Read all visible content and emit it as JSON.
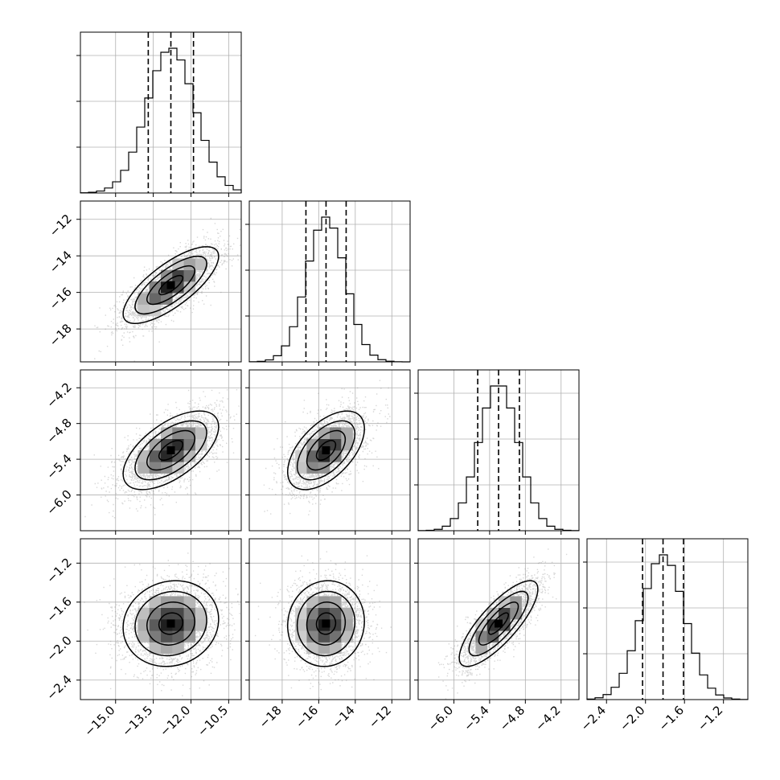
{
  "colors": {
    "ink": "#000000",
    "grid": "#b0b0b0",
    "points": "#8c8c8c",
    "background": "#ffffff"
  },
  "chart_data": {
    "type": "corner",
    "grid": true,
    "parameters": [
      {
        "median": -12.8,
        "sigma": 0.95,
        "range": [
          -16.4,
          -10.0
        ],
        "ticks": [
          -15.0,
          -13.5,
          -12.0,
          -10.5
        ],
        "tick_labels": [
          "−15.0",
          "−13.5",
          "−12.0",
          "−10.5"
        ],
        "quantiles": [
          -13.7,
          -12.8,
          -11.9
        ]
      },
      {
        "median": -15.6,
        "sigma": 1.05,
        "range": [
          -19.8,
          -11.0
        ],
        "ticks": [
          -18,
          -16,
          -14,
          -12
        ],
        "tick_labels": [
          "−18",
          "−16",
          "−14",
          "−12"
        ],
        "quantiles": [
          -16.7,
          -15.6,
          -14.5
        ]
      },
      {
        "median": -5.25,
        "sigma": 0.33,
        "range": [
          -6.6,
          -3.9
        ],
        "ticks": [
          -6.0,
          -5.4,
          -4.8,
          -4.2
        ],
        "tick_labels": [
          "−6.0",
          "−5.4",
          "−4.8",
          "−4.2"
        ],
        "quantiles": [
          -5.6,
          -5.25,
          -4.9
        ]
      },
      {
        "median": -1.82,
        "sigma": 0.22,
        "range": [
          -2.6,
          -0.95
        ],
        "ticks": [
          -2.4,
          -2.0,
          -1.6,
          -1.2
        ],
        "tick_labels": [
          "−2.4",
          "−2.0",
          "−1.6",
          "−1.2"
        ],
        "quantiles": [
          -2.03,
          -1.82,
          -1.61
        ]
      }
    ],
    "correlations": [
      [
        1.0,
        0.75,
        0.6,
        0.1
      ],
      [
        0.75,
        1.0,
        0.55,
        0.05
      ],
      [
        0.6,
        0.55,
        1.0,
        0.8
      ],
      [
        0.1,
        0.05,
        0.8,
        1.0
      ]
    ],
    "histogram_bins": 20,
    "contour_levels_sigma": [
      0.5,
      1.0,
      1.5,
      2.0
    ],
    "samples_per_panel": 3000
  }
}
